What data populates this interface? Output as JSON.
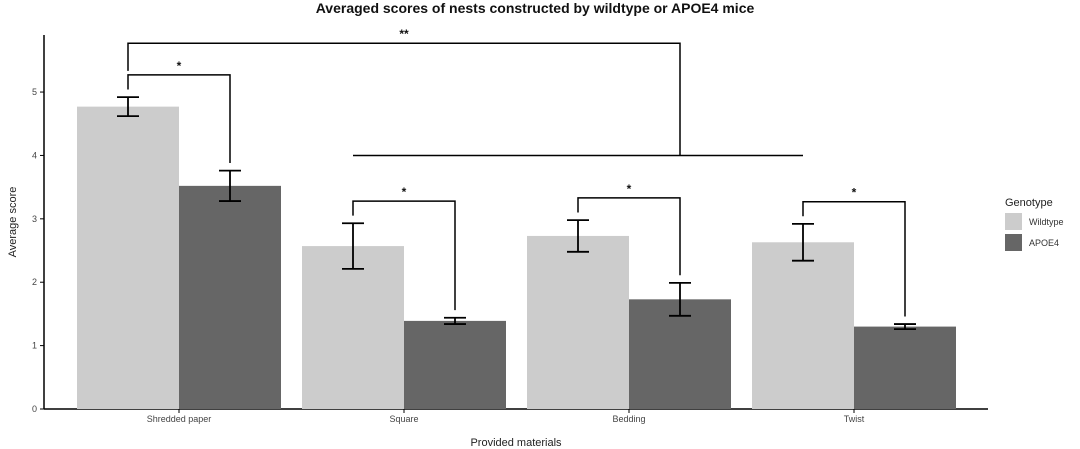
{
  "chart_data": {
    "type": "bar",
    "title": "Averaged scores of nests constructed by wildtype or APOE4 mice",
    "xlabel": "Provided materials",
    "ylabel": "Average score",
    "ylim": [
      0,
      5.9
    ],
    "yticks": [
      0,
      1,
      2,
      3,
      4,
      5
    ],
    "categories": [
      "Shredded paper",
      "Square",
      "Bedding",
      "Twist"
    ],
    "series": [
      {
        "name": "Wildtype",
        "color": "#cccccc",
        "values": [
          4.77,
          2.57,
          2.73,
          2.63
        ],
        "err": [
          0.15,
          0.36,
          0.25,
          0.29
        ]
      },
      {
        "name": "APOE4",
        "color": "#666666",
        "values": [
          3.52,
          1.39,
          1.73,
          1.3
        ],
        "err": [
          0.24,
          0.05,
          0.26,
          0.04
        ]
      }
    ],
    "legend": {
      "title": "Genotype",
      "position": "right"
    },
    "significance": [
      {
        "label": "*",
        "from": "Shredded paper|Wildtype",
        "to": "Shredded paper|APOE4"
      },
      {
        "label": "*",
        "from": "Square|Wildtype",
        "to": "Square|APOE4"
      },
      {
        "label": "*",
        "from": "Bedding|Wildtype",
        "to": "Bedding|APOE4"
      },
      {
        "label": "*",
        "from": "Twist|Wildtype",
        "to": "Twist|APOE4"
      },
      {
        "label": "**",
        "from": "Shredded paper",
        "to": "Square, Bedding, Twist"
      }
    ]
  }
}
